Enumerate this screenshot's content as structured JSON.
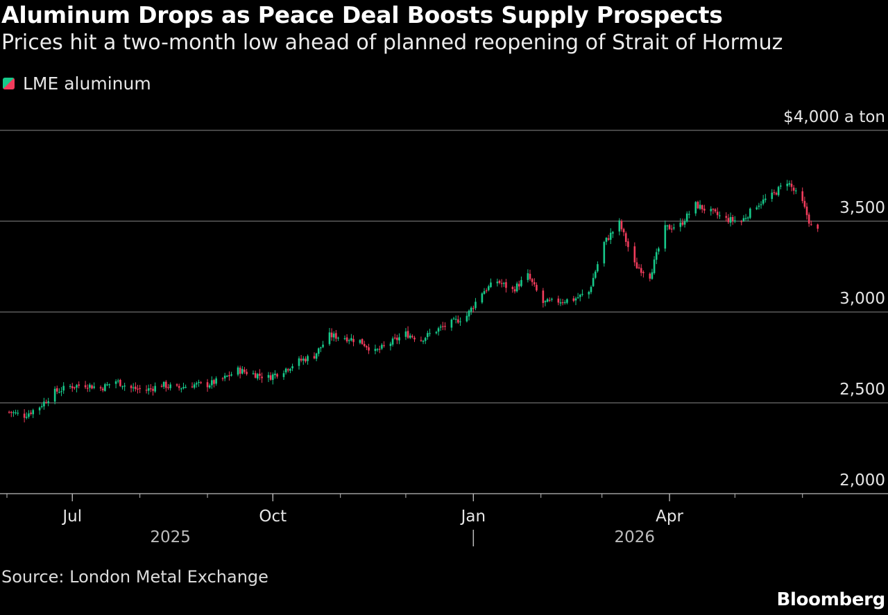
{
  "title": "Aluminum Drops as Peace Deal Boosts Supply Prospects",
  "subtitle": "Prices hit a two-month low ahead of planned reopening of Strait of Hormuz",
  "source": "Source: London Metal Exchange",
  "brand": "Bloomberg",
  "colors": {
    "up": "#17c98a",
    "down": "#f23c5c",
    "grid": "#8a8a8a",
    "axis": "#bdbdbd"
  },
  "chart_data": {
    "type": "candlestick",
    "series_name": "LME aluminum",
    "ylim": [
      2000,
      4000
    ],
    "y_ticks": [
      {
        "value": 2000,
        "label": "2,000"
      },
      {
        "value": 2500,
        "label": "2,500"
      },
      {
        "value": 3000,
        "label": "3,000"
      },
      {
        "value": 3500,
        "label": "3,500"
      },
      {
        "value": 4000,
        "label": "$4,000 a ton"
      }
    ],
    "x_range": [
      "2025-06-01",
      "2026-06-10"
    ],
    "x_month_labels": [
      {
        "date": "2025-07-01",
        "label": "Jul"
      },
      {
        "date": "2025-10-01",
        "label": "Oct"
      },
      {
        "date": "2026-01-01",
        "label": "Jan"
      },
      {
        "date": "2026-04-01",
        "label": "Apr"
      }
    ],
    "x_year_labels": [
      {
        "date": "2025-08-15",
        "label": "2025"
      },
      {
        "date": "2026-03-16",
        "label": "2026"
      }
    ],
    "year_boundary": "2026-01-01",
    "anchors": [
      [
        "2025-06-02",
        2450
      ],
      [
        "2025-06-09",
        2430
      ],
      [
        "2025-06-16",
        2480
      ],
      [
        "2025-06-23",
        2560
      ],
      [
        "2025-06-30",
        2590
      ],
      [
        "2025-07-07",
        2600
      ],
      [
        "2025-07-14",
        2580
      ],
      [
        "2025-07-21",
        2620
      ],
      [
        "2025-07-28",
        2580
      ],
      [
        "2025-08-04",
        2570
      ],
      [
        "2025-08-11",
        2600
      ],
      [
        "2025-08-18",
        2580
      ],
      [
        "2025-08-25",
        2600
      ],
      [
        "2025-09-01",
        2600
      ],
      [
        "2025-09-08",
        2630
      ],
      [
        "2025-09-15",
        2680
      ],
      [
        "2025-09-22",
        2660
      ],
      [
        "2025-09-29",
        2640
      ],
      [
        "2025-10-06",
        2680
      ],
      [
        "2025-10-13",
        2730
      ],
      [
        "2025-10-20",
        2760
      ],
      [
        "2025-10-27",
        2870
      ],
      [
        "2025-11-03",
        2860
      ],
      [
        "2025-11-10",
        2840
      ],
      [
        "2025-11-17",
        2780
      ],
      [
        "2025-11-24",
        2830
      ],
      [
        "2025-12-01",
        2880
      ],
      [
        "2025-12-08",
        2850
      ],
      [
        "2025-12-15",
        2900
      ],
      [
        "2025-12-22",
        2940
      ],
      [
        "2025-12-29",
        2980
      ],
      [
        "2026-01-05",
        3110
      ],
      [
        "2026-01-12",
        3170
      ],
      [
        "2026-01-19",
        3120
      ],
      [
        "2026-01-26",
        3200
      ],
      [
        "2026-02-02",
        3050
      ],
      [
        "2026-02-09",
        3060
      ],
      [
        "2026-02-16",
        3070
      ],
      [
        "2026-02-23",
        3110
      ],
      [
        "2026-03-02",
        3380
      ],
      [
        "2026-03-09",
        3490
      ],
      [
        "2026-03-16",
        3260
      ],
      [
        "2026-03-23",
        3200
      ],
      [
        "2026-03-30",
        3460
      ],
      [
        "2026-04-06",
        3480
      ],
      [
        "2026-04-13",
        3590
      ],
      [
        "2026-04-20",
        3550
      ],
      [
        "2026-04-27",
        3510
      ],
      [
        "2026-05-04",
        3500
      ],
      [
        "2026-05-11",
        3590
      ],
      [
        "2026-05-18",
        3640
      ],
      [
        "2026-05-25",
        3720
      ],
      [
        "2026-06-01",
        3600
      ],
      [
        "2026-06-05",
        3470
      ],
      [
        "2026-06-09",
        3440
      ]
    ]
  }
}
